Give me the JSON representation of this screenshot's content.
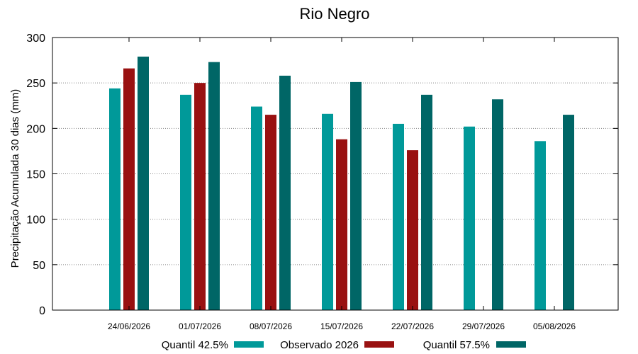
{
  "chart_data": {
    "type": "bar",
    "title": "Rio Negro",
    "xlabel": "",
    "ylabel": "Precipitação Acumulada 30 dias (mm)",
    "ylim": [
      0,
      300
    ],
    "yticks": [
      0,
      50,
      100,
      150,
      200,
      250,
      300
    ],
    "grid": true,
    "legend_position": "bottom",
    "categories": [
      "24/06/2026",
      "01/07/2026",
      "08/07/2026",
      "15/07/2026",
      "22/07/2026",
      "29/07/2026",
      "05/08/2026"
    ],
    "series": [
      {
        "name": "Quantil 42.5%",
        "color": "#009999",
        "values": [
          244,
          237,
          224,
          216,
          205,
          202,
          186
        ]
      },
      {
        "name": "Observado 2026",
        "color": "#991111",
        "values": [
          266,
          250,
          215,
          188,
          176,
          null,
          null
        ]
      },
      {
        "name": "Quantil 57.5%",
        "color": "#006666",
        "values": [
          279,
          273,
          258,
          251,
          237,
          232,
          215
        ]
      }
    ]
  }
}
